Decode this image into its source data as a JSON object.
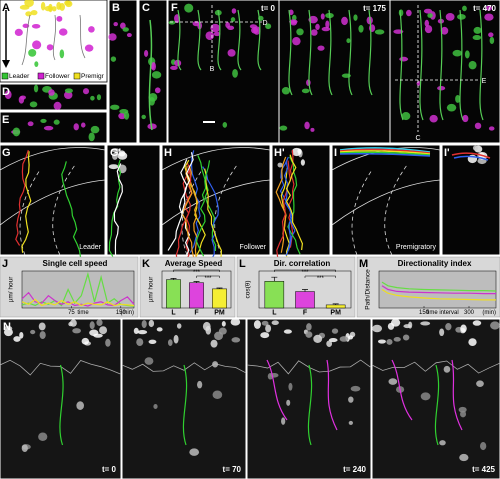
{
  "figure": {
    "a": {
      "label": "A",
      "legend": [
        {
          "name": "Leader",
          "color": "#33c433"
        },
        {
          "name": "Follower",
          "color": "#d020d0"
        },
        {
          "name": "Premigr",
          "color": "#f0e020"
        }
      ]
    },
    "b": "B",
    "c": "C",
    "d": "D",
    "e": "E",
    "f": {
      "label": "F",
      "times": [
        "t= 0",
        "t= 175",
        "t= 470"
      ],
      "markers": [
        "D",
        "B",
        "E",
        "C"
      ]
    },
    "g": {
      "label": "G",
      "caption": "Leader"
    },
    "g2": "G'",
    "h": {
      "label": "H",
      "caption": "Follower"
    },
    "h2": "H'",
    "i": {
      "label": "I",
      "caption": "Premigratory"
    },
    "i2": "I'",
    "n": {
      "label": "N",
      "times": [
        "t= 0",
        "t= 70",
        "t= 240",
        "t= 425"
      ]
    }
  },
  "chart_data": [
    {
      "label": "J",
      "type": "line",
      "title": "Single cell speed",
      "ylabel": "µm/ hour",
      "xlabel": "time",
      "xunit": "(min)",
      "xlim": [
        0,
        170
      ],
      "xticks": [
        75,
        150
      ],
      "ylim": [
        0,
        60
      ],
      "x": [
        0,
        10,
        20,
        30,
        40,
        50,
        60,
        70,
        80,
        90,
        100,
        110,
        120,
        130,
        140,
        150,
        160,
        170
      ],
      "series": [
        {
          "color": "#66dd44",
          "values": [
            5,
            8,
            4,
            10,
            6,
            12,
            4,
            30,
            8,
            20,
            55,
            10,
            50,
            8,
            15,
            6,
            4,
            3
          ]
        },
        {
          "color": "#cc33cc",
          "values": [
            15,
            25,
            10,
            8,
            20,
            12,
            6,
            10,
            4,
            6,
            3,
            8,
            10,
            5,
            4,
            12,
            18,
            6
          ]
        },
        {
          "color": "#eedd22",
          "values": [
            10,
            6,
            14,
            4,
            8,
            5,
            12,
            6,
            10,
            4,
            8,
            6,
            5,
            10,
            4,
            6,
            5,
            4
          ]
        }
      ]
    },
    {
      "label": "K",
      "type": "bar",
      "title": "Average Speed",
      "ylabel": "µm/ hour",
      "categories": [
        "L",
        "F",
        "PM"
      ],
      "values": [
        23,
        20.5,
        15.5
      ],
      "errors": [
        1,
        1,
        0.7
      ],
      "colors": [
        "#88e055",
        "#dd44dd",
        "#f5ee33"
      ],
      "ylim": [
        0,
        30
      ],
      "significance": [
        "***",
        "***"
      ]
    },
    {
      "label": "L",
      "type": "bar",
      "title": "Dir. correlation",
      "ylabel": "cos(θ)",
      "categories": [
        "L",
        "F",
        "PM"
      ],
      "values": [
        0.26,
        0.16,
        0.03
      ],
      "errors": [
        0.04,
        0.02,
        0.01
      ],
      "colors": [
        "#88e055",
        "#dd44dd",
        "#f5ee33"
      ],
      "ylim": [
        0,
        0.36
      ],
      "significance": [
        "***",
        "***"
      ]
    },
    {
      "label": "M",
      "type": "line",
      "title": "Directionality index",
      "ylabel": "Path/Distance",
      "xlabel": "time interval",
      "xunit": "(min)",
      "xlim": [
        0,
        390
      ],
      "xticks": [
        150,
        300
      ],
      "ylim": [
        0,
        1
      ],
      "x": [
        10,
        30,
        60,
        100,
        150,
        200,
        250,
        300,
        350,
        390
      ],
      "series": [
        {
          "color": "#66dd44",
          "values": [
            0.7,
            0.6,
            0.55,
            0.52,
            0.5,
            0.49,
            0.48,
            0.47,
            0.47,
            0.46
          ]
        },
        {
          "color": "#cc33cc",
          "values": [
            0.6,
            0.5,
            0.45,
            0.43,
            0.42,
            0.41,
            0.4,
            0.4,
            0.39,
            0.39
          ]
        },
        {
          "color": "#eedd22",
          "values": [
            0.5,
            0.4,
            0.34,
            0.3,
            0.27,
            0.25,
            0.24,
            0.23,
            0.22,
            0.22
          ]
        }
      ]
    }
  ]
}
